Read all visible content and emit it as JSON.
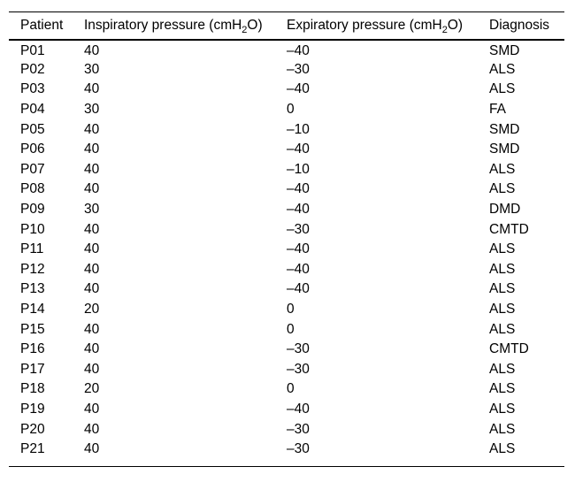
{
  "table": {
    "columns": [
      {
        "id": "patient",
        "label": "Patient"
      },
      {
        "id": "inspiratory",
        "label_pre": "Inspiratory pressure (cmH",
        "label_sub": "2",
        "label_post": "O)"
      },
      {
        "id": "expiratory",
        "label_pre": "Expiratory pressure (cmH",
        "label_sub": "2",
        "label_post": "O)"
      },
      {
        "id": "diagnosis",
        "label": "Diagnosis"
      }
    ],
    "rows": [
      {
        "patient": "P01",
        "inspiratory": "40",
        "expiratory": "–40",
        "diagnosis": "SMD"
      },
      {
        "patient": "P02",
        "inspiratory": "30",
        "expiratory": "–30",
        "diagnosis": "ALS"
      },
      {
        "patient": "P03",
        "inspiratory": "40",
        "expiratory": "–40",
        "diagnosis": "ALS"
      },
      {
        "patient": "P04",
        "inspiratory": "30",
        "expiratory": "0",
        "diagnosis": "FA"
      },
      {
        "patient": "P05",
        "inspiratory": "40",
        "expiratory": "–10",
        "diagnosis": "SMD"
      },
      {
        "patient": "P06",
        "inspiratory": "40",
        "expiratory": "–40",
        "diagnosis": "SMD"
      },
      {
        "patient": "P07",
        "inspiratory": "40",
        "expiratory": "–10",
        "diagnosis": "ALS"
      },
      {
        "patient": "P08",
        "inspiratory": "40",
        "expiratory": "–40",
        "diagnosis": "ALS"
      },
      {
        "patient": "P09",
        "inspiratory": "30",
        "expiratory": "–40",
        "diagnosis": "DMD"
      },
      {
        "patient": "P10",
        "inspiratory": "40",
        "expiratory": "–30",
        "diagnosis": "CMTD"
      },
      {
        "patient": "P11",
        "inspiratory": "40",
        "expiratory": "–40",
        "diagnosis": "ALS"
      },
      {
        "patient": "P12",
        "inspiratory": "40",
        "expiratory": "–40",
        "diagnosis": "ALS"
      },
      {
        "patient": "P13",
        "inspiratory": "40",
        "expiratory": "–40",
        "diagnosis": "ALS"
      },
      {
        "patient": "P14",
        "inspiratory": "20",
        "expiratory": "0",
        "diagnosis": "ALS"
      },
      {
        "patient": "P15",
        "inspiratory": "40",
        "expiratory": "0",
        "diagnosis": "ALS"
      },
      {
        "patient": "P16",
        "inspiratory": "40",
        "expiratory": "–30",
        "diagnosis": "CMTD"
      },
      {
        "patient": "P17",
        "inspiratory": "40",
        "expiratory": "–30",
        "diagnosis": "ALS"
      },
      {
        "patient": "P18",
        "inspiratory": "20",
        "expiratory": "0",
        "diagnosis": "ALS"
      },
      {
        "patient": "P19",
        "inspiratory": "40",
        "expiratory": "–40",
        "diagnosis": "ALS"
      },
      {
        "patient": "P20",
        "inspiratory": "40",
        "expiratory": "–30",
        "diagnosis": "ALS"
      },
      {
        "patient": "P21",
        "inspiratory": "40",
        "expiratory": "–30",
        "diagnosis": "ALS"
      }
    ]
  },
  "colors": {
    "text": "#000000",
    "background": "#ffffff",
    "rule": "#000000"
  }
}
